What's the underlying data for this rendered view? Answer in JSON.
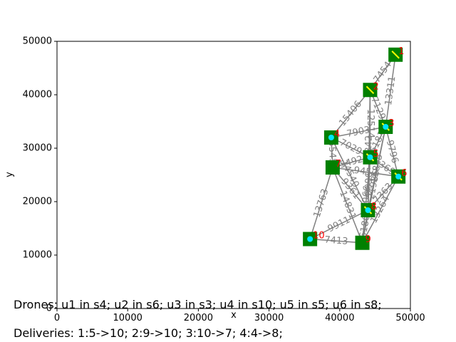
{
  "chart_data": {
    "type": "network",
    "xlabel": "x",
    "ylabel": "y",
    "xlim": [
      0,
      50000
    ],
    "ylim": [
      0,
      50000
    ],
    "x_ticks": [
      0,
      10000,
      20000,
      30000,
      40000,
      50000
    ],
    "y_ticks": [
      0,
      10000,
      20000,
      30000,
      40000,
      50000
    ],
    "tick_labels_x": [
      "0",
      "10000",
      "20000",
      "30000",
      "40000",
      "50000"
    ],
    "tick_labels_y": [
      "0",
      "10000",
      "20000",
      "30000",
      "40000",
      "50000"
    ],
    "colors": {
      "station": "#008000",
      "edge": "#808080",
      "station_label": "#ff0000",
      "drone": "#00e5ff",
      "cargo": "#ffff00"
    },
    "stations": [
      {
        "id": "s1",
        "label": "1",
        "x": 47900,
        "y": 47500
      },
      {
        "id": "s2",
        "label": "2",
        "x": 44300,
        "y": 40900
      },
      {
        "id": "s3",
        "label": "3",
        "x": 46500,
        "y": 34000
      },
      {
        "id": "s4",
        "label": "4",
        "x": 38800,
        "y": 32000
      },
      {
        "id": "s5",
        "label": "5",
        "x": 44300,
        "y": 28300
      },
      {
        "id": "s6",
        "label": "6",
        "x": 48300,
        "y": 24700
      },
      {
        "id": "s7",
        "label": "7",
        "x": 39000,
        "y": 26400
      },
      {
        "id": "s8",
        "label": "8",
        "x": 44000,
        "y": 18400
      },
      {
        "id": "s9",
        "label": "9",
        "x": 43200,
        "y": 12300
      },
      {
        "id": "s10",
        "label": "10",
        "x": 35800,
        "y": 13000
      }
    ],
    "edges": [
      {
        "a": "s1",
        "b": "s2",
        "label": "7454"
      },
      {
        "a": "s1",
        "b": "s3",
        "label": "13311"
      },
      {
        "a": "s2",
        "b": "s3",
        "label": "7129"
      },
      {
        "a": "s2",
        "b": "s4",
        "label": "15406"
      },
      {
        "a": "s2",
        "b": "s5",
        "label": "12514"
      },
      {
        "a": "s2",
        "b": "s8",
        "label": "22842"
      },
      {
        "a": "s3",
        "b": "s4",
        "label": "7903"
      },
      {
        "a": "s3",
        "b": "s5",
        "label": "6183"
      },
      {
        "a": "s3",
        "b": "s6",
        "label": "9796"
      },
      {
        "a": "s3",
        "b": "s8",
        "label": "15845"
      },
      {
        "a": "s3",
        "b": "s9",
        "label": "21986"
      },
      {
        "a": "s4",
        "b": "s5",
        "label": "7029"
      },
      {
        "a": "s4",
        "b": "s7",
        "label": "5545"
      },
      {
        "a": "s4",
        "b": "s8",
        "label": "14540"
      },
      {
        "a": "s5",
        "b": "s7",
        "label": "5492"
      },
      {
        "a": "s5",
        "b": "s6",
        "label": "5369"
      },
      {
        "a": "s5",
        "b": "s8",
        "label": "9996"
      },
      {
        "a": "s5",
        "b": "s9",
        "label": "16066"
      },
      {
        "a": "s6",
        "b": "s7",
        "label": "9452"
      },
      {
        "a": "s6",
        "b": "s8",
        "label": "7363"
      },
      {
        "a": "s6",
        "b": "s9",
        "label": "13264"
      },
      {
        "a": "s7",
        "b": "s8",
        "label": "9361"
      },
      {
        "a": "s7",
        "b": "s9",
        "label": "14831"
      },
      {
        "a": "s7",
        "b": "s10",
        "label": "13763"
      },
      {
        "a": "s8",
        "b": "s9",
        "label": "6180"
      },
      {
        "a": "s8",
        "b": "s10",
        "label": "9911"
      },
      {
        "a": "s9",
        "b": "s10",
        "label": "7413"
      }
    ],
    "drones": [
      {
        "id": "u1",
        "station": "s4",
        "dx": 0,
        "dy": 0
      },
      {
        "id": "u2",
        "station": "s6",
        "dx": 0,
        "dy": 0
      },
      {
        "id": "u3",
        "station": "s3",
        "dx": 0,
        "dy": 0
      },
      {
        "id": "u4",
        "station": "s10",
        "dx": 0,
        "dy": 0
      },
      {
        "id": "u5",
        "station": "s5",
        "dx": 0,
        "dy": 0
      },
      {
        "id": "u6",
        "station": "s8",
        "dx": 0,
        "dy": 0
      }
    ],
    "cargo_at": [
      "s1",
      "s2",
      "s3",
      "s5",
      "s6",
      "s8"
    ],
    "captions": {
      "drones": "Drones: u1 in s4; u2 in s6; u3 in s3; u4 in s10; u5 in s5; u6 in s8;",
      "deliveries": "Deliveries: 1:5->10; 2:9->10; 3:10->7; 4:4->8;"
    }
  }
}
